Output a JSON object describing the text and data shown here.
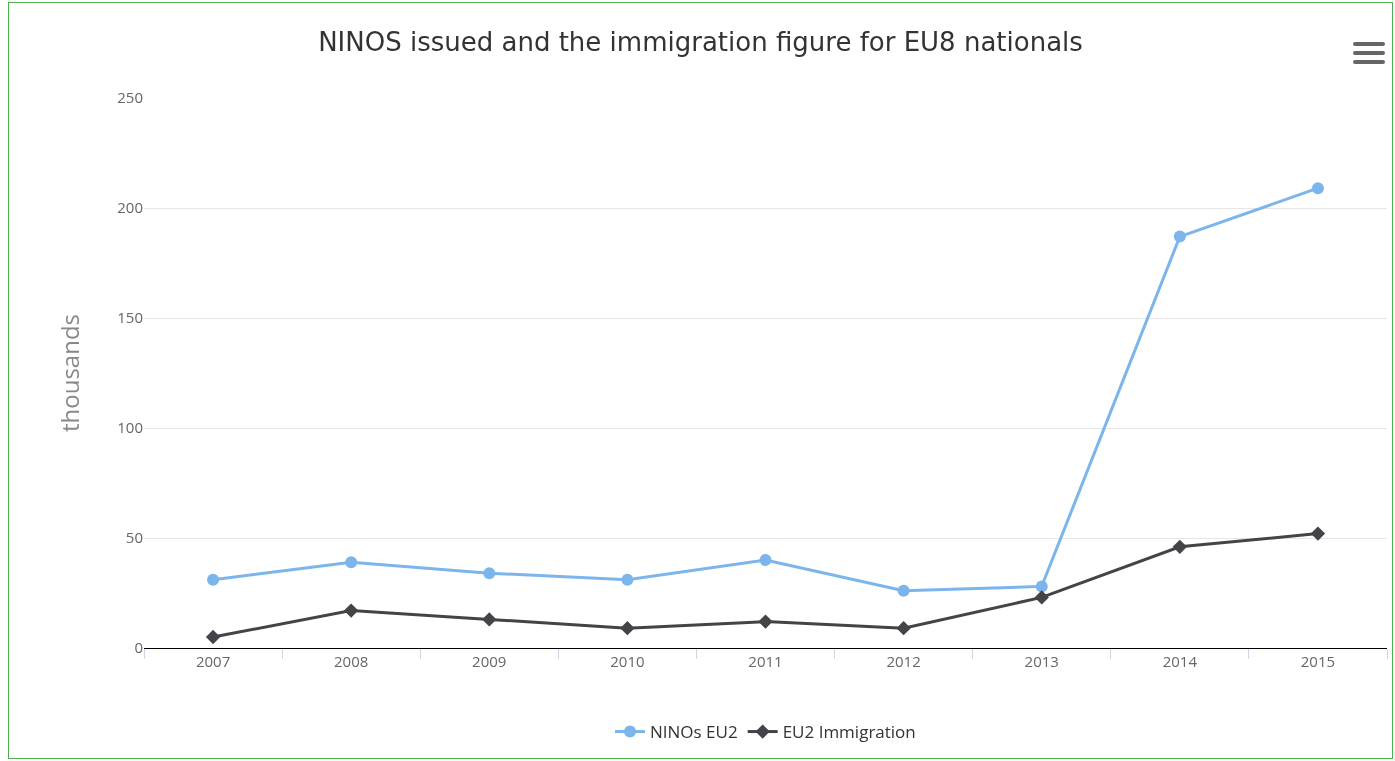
{
  "chart_data": {
    "type": "line",
    "title": "NINOS issued and the immigration figure for EU8 nationals",
    "ylabel": "thousands",
    "categories": [
      "2007",
      "2008",
      "2009",
      "2010",
      "2011",
      "2012",
      "2013",
      "2014",
      "2015"
    ],
    "series": [
      {
        "name": "NINOs EU2",
        "color": "#7cb5ec",
        "marker": "circle",
        "values": [
          31,
          39,
          34,
          31,
          40,
          26,
          28,
          187,
          209
        ]
      },
      {
        "name": "EU2 Immigration",
        "color": "#434348",
        "marker": "diamond",
        "values": [
          5,
          17,
          13,
          9,
          12,
          9,
          23,
          46,
          52
        ]
      }
    ],
    "ylim": [
      0,
      250
    ],
    "yticks": [
      0,
      50,
      100,
      150,
      200,
      250
    ],
    "grid": "y",
    "legend": "bottom",
    "line_style": "solid"
  }
}
